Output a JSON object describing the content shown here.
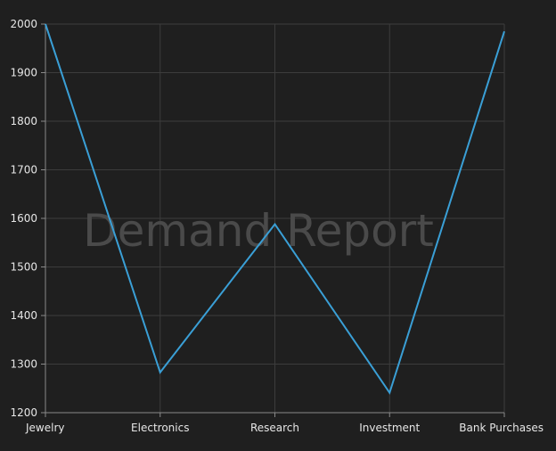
{
  "chart_data": {
    "type": "line",
    "watermark": "Demand Report",
    "categories": [
      "Jewelry",
      "Electronics",
      "Research",
      "Investment",
      "Bank Purchases"
    ],
    "series": [
      {
        "values": [
          2000,
          1283,
          1588,
          1241,
          1985
        ]
      }
    ],
    "ylim": [
      1200,
      2000
    ],
    "yticks": [
      1200,
      1300,
      1400,
      1500,
      1600,
      1700,
      1800,
      1900,
      2000
    ],
    "grid": true,
    "colors": {
      "background": "#1f1f1f",
      "line": "#3a9fd6",
      "grid": "#3c3c3c",
      "axis": "#8a8a8a",
      "text": "#e6e6e6",
      "watermark": "#4a4a4a"
    }
  }
}
